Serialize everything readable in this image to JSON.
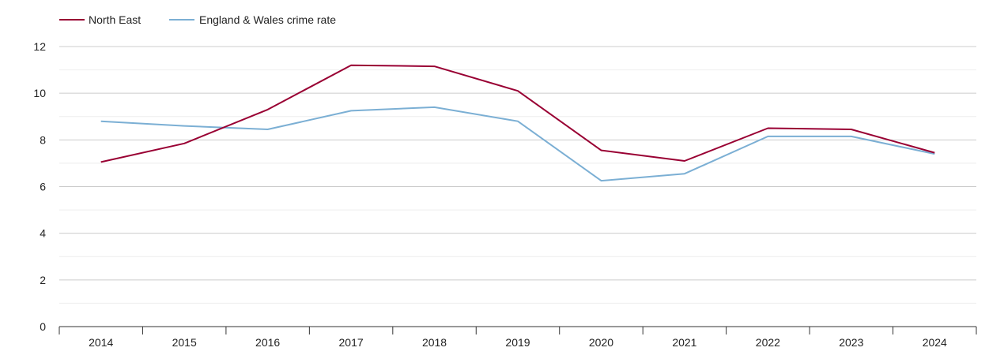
{
  "chart_data": {
    "type": "line",
    "title": "",
    "xlabel": "",
    "ylabel": "",
    "x": [
      "2014",
      "2015",
      "2016",
      "2017",
      "2018",
      "2019",
      "2020",
      "2021",
      "2022",
      "2023",
      "2024"
    ],
    "ylim": [
      0,
      12
    ],
    "yticks": [
      "0",
      "2",
      "4",
      "6",
      "8",
      "10",
      "12"
    ],
    "grid": true,
    "legend_position": "top-left",
    "series": [
      {
        "name": "North East",
        "color": "#990033",
        "values": [
          7.05,
          7.85,
          9.3,
          11.2,
          11.15,
          10.1,
          7.55,
          7.1,
          8.5,
          8.45,
          7.45
        ]
      },
      {
        "name": "England & Wales crime rate",
        "color": "#7bafd4",
        "values": [
          8.8,
          8.6,
          8.45,
          9.25,
          9.4,
          8.8,
          6.25,
          6.55,
          8.15,
          8.15,
          7.4
        ]
      }
    ]
  }
}
